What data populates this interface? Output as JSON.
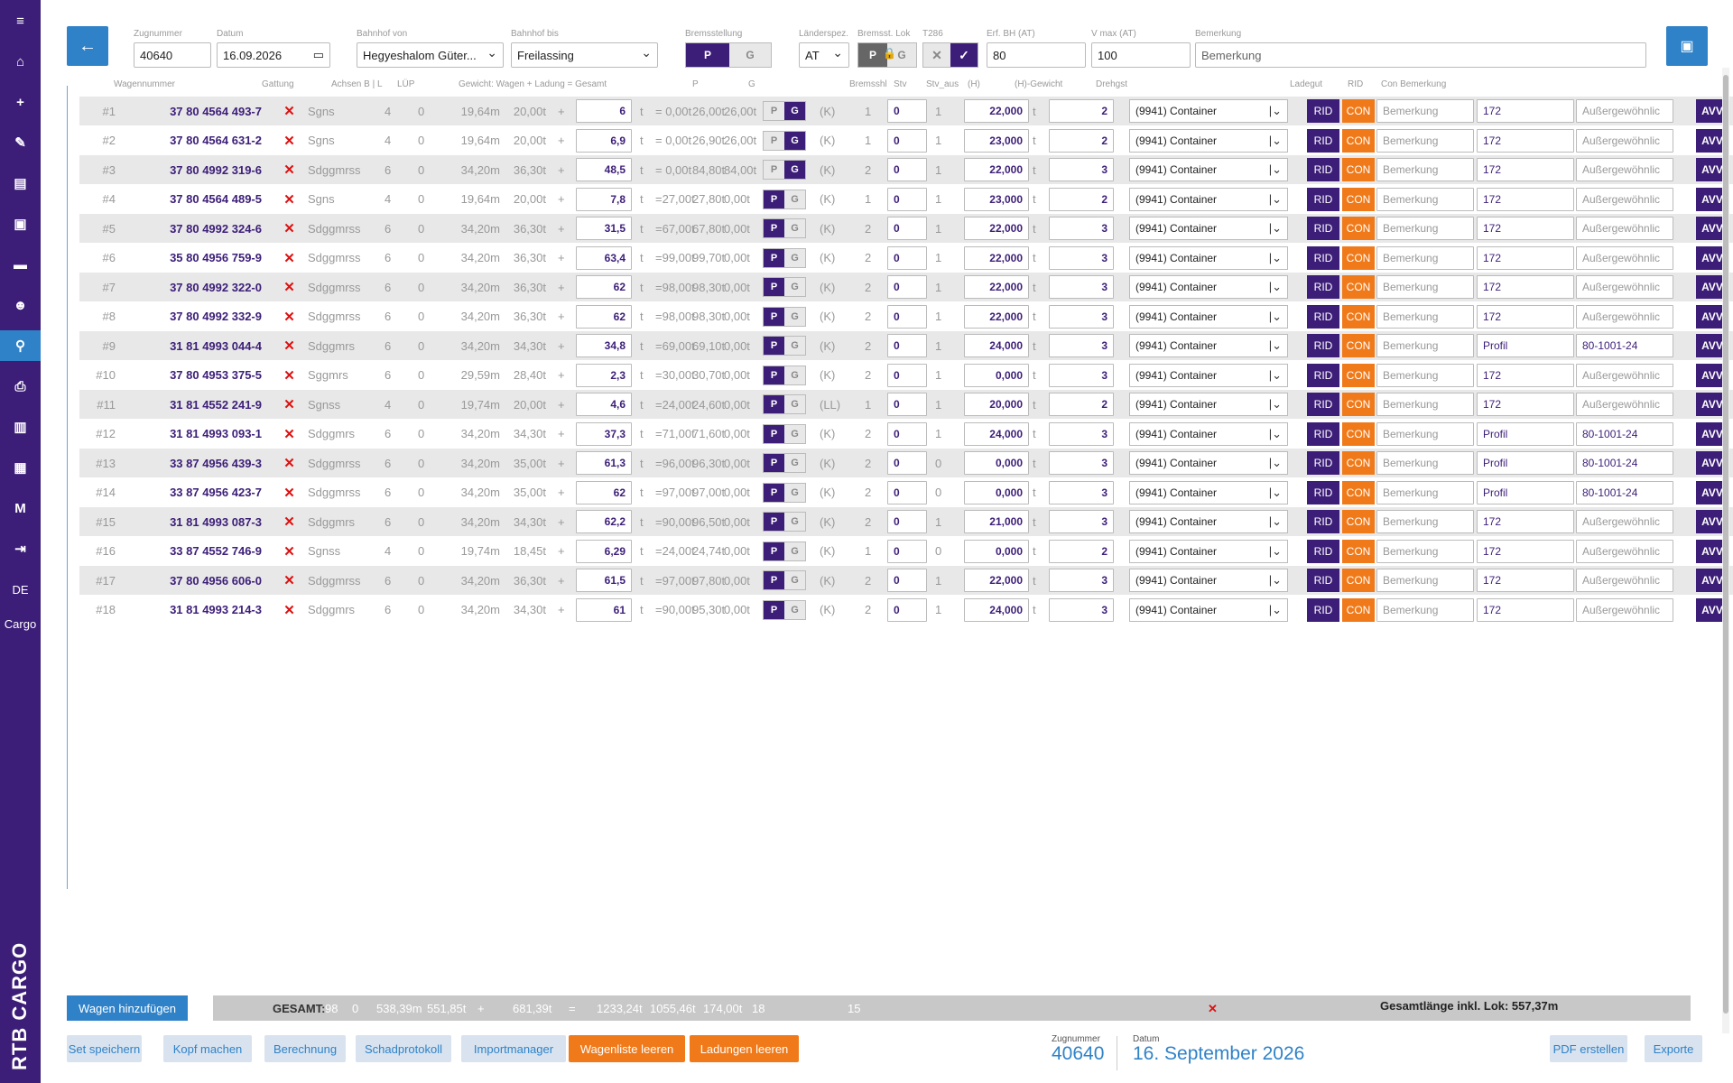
{
  "sidebar": {
    "icons": [
      "menu-icon",
      "home-icon",
      "plus-icon",
      "edit-icon",
      "document-icon",
      "train-icon",
      "archive-icon",
      "users-icon",
      "pin-icon",
      "print-icon",
      "wagon-icon",
      "list-icon"
    ],
    "m_label": "M",
    "logout_icon": "logout-icon",
    "lang": "DE",
    "app_label": "Cargo",
    "brand": "RTB CARGO"
  },
  "header": {
    "zugnummer_label": "Zugnummer",
    "zugnummer": "40640",
    "datum_label": "Datum",
    "datum": "16.09.2026",
    "von_label": "Bahnhof von",
    "von": "Hegyeshalom Güter...",
    "bis_label": "Bahnhof bis",
    "bis": "Freilassing",
    "brems_label": "Bremsstellung",
    "brems_p": "P",
    "brems_g": "G",
    "laender_label": "Länderspez.",
    "laender": "AT",
    "lok_label": "Bremsst. Lok",
    "lok_p": "P",
    "lok_g": "G",
    "t286_label": "T286",
    "erf_label": "Erf. BH (AT)",
    "erf": "80",
    "vmax_label": "V max (AT)",
    "vmax": "100",
    "bem_label": "Bemerkung",
    "bem_placeholder": "Bemerkung"
  },
  "columns": {
    "wagennummer": "Wagennummer",
    "gattung": "Gattung",
    "achsen": "Achsen B | L",
    "lup": "LÜP",
    "gewicht": "Gewicht: Wagen + Ladung = Gesamt",
    "p": "P",
    "g": "G",
    "bremsshl": "Bremsshl",
    "stv": "Stv",
    "stv_aus": "Stv_aus",
    "h": "(H)",
    "hgewicht": "(H)-Gewicht",
    "drehgst": "Drehgst",
    "ladegut": "Ladegut",
    "rid": "RID",
    "conbem": "Con Bemerkung"
  },
  "rows": [
    {
      "nr": "#1",
      "wn": "37 80 4564 493-7",
      "gat": "Sgns",
      "ax": "4",
      "l": "0",
      "lup": "19,64m",
      "ww": "20,00t",
      "load": "6",
      "eq": "= 0,00t",
      "tot": "26,00t",
      "h": "26,00t",
      "pg": "G",
      "k": "(K)",
      "kc": "1",
      "bsh": "0",
      "stv": "1",
      "aus": "22,000",
      "hg": "2",
      "dreh": "(9941) Container",
      "bem": "Bemerkung",
      "n172": "172",
      "aus2": "Außergewöhnlic"
    },
    {
      "nr": "#2",
      "wn": "37 80 4564 631-2",
      "gat": "Sgns",
      "ax": "4",
      "l": "0",
      "lup": "19,64m",
      "ww": "20,00t",
      "load": "6,9",
      "eq": "= 0,00t",
      "tot": "26,90t",
      "h": "26,00t",
      "pg": "G",
      "k": "(K)",
      "kc": "1",
      "bsh": "0",
      "stv": "1",
      "aus": "23,000",
      "hg": "2",
      "dreh": "(9941) Container",
      "bem": "Bemerkung",
      "n172": "172",
      "aus2": "Außergewöhnlic"
    },
    {
      "nr": "#3",
      "wn": "37 80 4992 319-6",
      "gat": "Sdggmrss",
      "ax": "6",
      "l": "0",
      "lup": "34,20m",
      "ww": "36,30t",
      "load": "48,5",
      "eq": "= 0,00t",
      "tot": "84,80t",
      "h": "84,00t",
      "pg": "G",
      "k": "(K)",
      "kc": "2",
      "bsh": "0",
      "stv": "1",
      "aus": "22,000",
      "hg": "3",
      "dreh": "(9941) Container",
      "bem": "Bemerkung",
      "n172": "172",
      "aus2": "Außergewöhnlic"
    },
    {
      "nr": "#4",
      "wn": "37 80 4564 489-5",
      "gat": "Sgns",
      "ax": "4",
      "l": "0",
      "lup": "19,64m",
      "ww": "20,00t",
      "load": "7,8",
      "eq": "=27,00t",
      "tot": "27,80t",
      "h": "0,00t",
      "pg": "P",
      "k": "(K)",
      "kc": "1",
      "bsh": "0",
      "stv": "1",
      "aus": "23,000",
      "hg": "2",
      "dreh": "(9941) Container",
      "bem": "Bemerkung",
      "n172": "172",
      "aus2": "Außergewöhnlic"
    },
    {
      "nr": "#5",
      "wn": "37 80 4992 324-6",
      "gat": "Sdggmrss",
      "ax": "6",
      "l": "0",
      "lup": "34,20m",
      "ww": "36,30t",
      "load": "31,5",
      "eq": "=67,00t",
      "tot": "67,80t",
      "h": "0,00t",
      "pg": "P",
      "k": "(K)",
      "kc": "2",
      "bsh": "0",
      "stv": "1",
      "aus": "22,000",
      "hg": "3",
      "dreh": "(9941) Container",
      "bem": "Bemerkung",
      "n172": "172",
      "aus2": "Außergewöhnlic"
    },
    {
      "nr": "#6",
      "wn": "35 80 4956 759-9",
      "gat": "Sdggmrss",
      "ax": "6",
      "l": "0",
      "lup": "34,20m",
      "ww": "36,30t",
      "load": "63,4",
      "eq": "=99,00t",
      "tot": "99,70t",
      "h": "0,00t",
      "pg": "P",
      "k": "(K)",
      "kc": "2",
      "bsh": "0",
      "stv": "1",
      "aus": "22,000",
      "hg": "3",
      "dreh": "(9941) Container",
      "bem": "Bemerkung",
      "n172": "172",
      "aus2": "Außergewöhnlic"
    },
    {
      "nr": "#7",
      "wn": "37 80 4992 322-0",
      "gat": "Sdggmrss",
      "ax": "6",
      "l": "0",
      "lup": "34,20m",
      "ww": "36,30t",
      "load": "62",
      "eq": "=98,00t",
      "tot": "98,30t",
      "h": "0,00t",
      "pg": "P",
      "k": "(K)",
      "kc": "2",
      "bsh": "0",
      "stv": "1",
      "aus": "22,000",
      "hg": "3",
      "dreh": "(9941) Container",
      "bem": "Bemerkung",
      "n172": "172",
      "aus2": "Außergewöhnlic"
    },
    {
      "nr": "#8",
      "wn": "37 80 4992 332-9",
      "gat": "Sdggmrss",
      "ax": "6",
      "l": "0",
      "lup": "34,20m",
      "ww": "36,30t",
      "load": "62",
      "eq": "=98,00t",
      "tot": "98,30t",
      "h": "0,00t",
      "pg": "P",
      "k": "(K)",
      "kc": "2",
      "bsh": "0",
      "stv": "1",
      "aus": "22,000",
      "hg": "3",
      "dreh": "(9941) Container",
      "bem": "Bemerkung",
      "n172": "172",
      "aus2": "Außergewöhnlic"
    },
    {
      "nr": "#9",
      "wn": "31 81 4993 044-4",
      "gat": "Sdggmrs",
      "ax": "6",
      "l": "0",
      "lup": "34,20m",
      "ww": "34,30t",
      "load": "34,8",
      "eq": "=69,00t",
      "tot": "69,10t",
      "h": "0,00t",
      "pg": "P",
      "k": "(K)",
      "kc": "2",
      "bsh": "0",
      "stv": "1",
      "aus": "24,000",
      "hg": "3",
      "dreh": "(9941) Container",
      "bem": "Bemerkung",
      "n172": "Profil",
      "aus2": "80-1001-24"
    },
    {
      "nr": "#10",
      "wn": "37 80 4953 375-5",
      "gat": "Sggmrs",
      "ax": "6",
      "l": "0",
      "lup": "29,59m",
      "ww": "28,40t",
      "load": "2,3",
      "eq": "=30,00t",
      "tot": "30,70t",
      "h": "0,00t",
      "pg": "P",
      "k": "(K)",
      "kc": "2",
      "bsh": "0",
      "stv": "1",
      "aus": "0,000",
      "hg": "3",
      "dreh": "(9941) Container",
      "bem": "Bemerkung",
      "n172": "172",
      "aus2": "Außergewöhnlic"
    },
    {
      "nr": "#11",
      "wn": "31 81 4552 241-9",
      "gat": "Sgnss",
      "ax": "4",
      "l": "0",
      "lup": "19,74m",
      "ww": "20,00t",
      "load": "4,6",
      "eq": "=24,00t",
      "tot": "24,60t",
      "h": "0,00t",
      "pg": "P",
      "k": "(LL)",
      "kc": "1",
      "bsh": "0",
      "stv": "1",
      "aus": "20,000",
      "hg": "2",
      "dreh": "(9941) Container",
      "bem": "Bemerkung",
      "n172": "172",
      "aus2": "Außergewöhnlic"
    },
    {
      "nr": "#12",
      "wn": "31 81 4993 093-1",
      "gat": "Sdggmrs",
      "ax": "6",
      "l": "0",
      "lup": "34,20m",
      "ww": "34,30t",
      "load": "37,3",
      "eq": "=71,00t",
      "tot": "71,60t",
      "h": "0,00t",
      "pg": "P",
      "k": "(K)",
      "kc": "2",
      "bsh": "0",
      "stv": "1",
      "aus": "24,000",
      "hg": "3",
      "dreh": "(9941) Container",
      "bem": "Bemerkung",
      "n172": "Profil",
      "aus2": "80-1001-24"
    },
    {
      "nr": "#13",
      "wn": "33 87 4956 439-3",
      "gat": "Sdggmrss",
      "ax": "6",
      "l": "0",
      "lup": "34,20m",
      "ww": "35,00t",
      "load": "61,3",
      "eq": "=96,00t",
      "tot": "96,30t",
      "h": "0,00t",
      "pg": "P",
      "k": "(K)",
      "kc": "2",
      "bsh": "0",
      "stv": "0",
      "aus": "0,000",
      "hg": "3",
      "dreh": "(9941) Container",
      "bem": "Bemerkung",
      "n172": "Profil",
      "aus2": "80-1001-24"
    },
    {
      "nr": "#14",
      "wn": "33 87 4956 423-7",
      "gat": "Sdggmrss",
      "ax": "6",
      "l": "0",
      "lup": "34,20m",
      "ww": "35,00t",
      "load": "62",
      "eq": "=97,00t",
      "tot": "97,00t",
      "h": "0,00t",
      "pg": "P",
      "k": "(K)",
      "kc": "2",
      "bsh": "0",
      "stv": "0",
      "aus": "0,000",
      "hg": "3",
      "dreh": "(9941) Container",
      "bem": "Bemerkung",
      "n172": "Profil",
      "aus2": "80-1001-24"
    },
    {
      "nr": "#15",
      "wn": "31 81 4993 087-3",
      "gat": "Sdggmrs",
      "ax": "6",
      "l": "0",
      "lup": "34,20m",
      "ww": "34,30t",
      "load": "62,2",
      "eq": "=90,00t",
      "tot": "96,50t",
      "h": "0,00t",
      "pg": "P",
      "k": "(K)",
      "kc": "2",
      "bsh": "0",
      "stv": "1",
      "aus": "21,000",
      "hg": "3",
      "dreh": "(9941) Container",
      "bem": "Bemerkung",
      "n172": "172",
      "aus2": "Außergewöhnlic"
    },
    {
      "nr": "#16",
      "wn": "33 87 4552 746-9",
      "gat": "Sgnss",
      "ax": "4",
      "l": "0",
      "lup": "19,74m",
      "ww": "18,45t",
      "load": "6,29",
      "eq": "=24,00t",
      "tot": "24,74t",
      "h": "0,00t",
      "pg": "P",
      "k": "(K)",
      "kc": "1",
      "bsh": "0",
      "stv": "0",
      "aus": "0,000",
      "hg": "2",
      "dreh": "(9941) Container",
      "bem": "Bemerkung",
      "n172": "172",
      "aus2": "Außergewöhnlic"
    },
    {
      "nr": "#17",
      "wn": "37 80 4956 606-0",
      "gat": "Sdggmrss",
      "ax": "6",
      "l": "0",
      "lup": "34,20m",
      "ww": "36,30t",
      "load": "61,5",
      "eq": "=97,00t",
      "tot": "97,80t",
      "h": "0,00t",
      "pg": "P",
      "k": "(K)",
      "kc": "2",
      "bsh": "0",
      "stv": "1",
      "aus": "22,000",
      "hg": "3",
      "dreh": "(9941) Container",
      "bem": "Bemerkung",
      "n172": "172",
      "aus2": "Außergewöhnlic"
    },
    {
      "nr": "#18",
      "wn": "31 81 4993 214-3",
      "gat": "Sdggmrs",
      "ax": "6",
      "l": "0",
      "lup": "34,20m",
      "ww": "34,30t",
      "load": "61",
      "eq": "=90,00t",
      "tot": "95,30t",
      "h": "0,00t",
      "pg": "P",
      "k": "(K)",
      "kc": "2",
      "bsh": "0",
      "stv": "1",
      "aus": "24,000",
      "hg": "3",
      "dreh": "(9941) Container",
      "bem": "Bemerkung",
      "n172": "172",
      "aus2": "Außergewöhnlic"
    }
  ],
  "static": {
    "t": "t",
    "plus": "+",
    "p": "P",
    "g": "G",
    "rid": "RID",
    "con": "CON",
    "avv": "AVV",
    "del": "✕"
  },
  "totals": {
    "label": "GESAMT:",
    "achsen": "98",
    "l": "0",
    "lup": "538,39m",
    "wagen": "551,85t",
    "plus": "+",
    "ladung": "681,39t",
    "eq": "=",
    "gesamt": "1233,24t",
    "p": "1055,46t",
    "g": "174,00t",
    "bremsshl": "18",
    "stv": "15",
    "x": "✕",
    "length": "Gesamtlänge inkl. Lok: 557,37m"
  },
  "footer": {
    "add": "Wagen hinzufügen",
    "set": "Set speichern",
    "kopf": "Kopf machen",
    "berechnung": "Berechnung",
    "schad": "Schadprotokoll",
    "import": "Importmanager",
    "leeren": "Wagenliste leeren",
    "ladleeren": "Ladungen leeren",
    "zug_label": "Zugnummer",
    "zug": "40640",
    "datum_label": "Datum",
    "datum": "16. September 2026",
    "pdf": "PDF erstellen",
    "exporte": "Exporte"
  }
}
